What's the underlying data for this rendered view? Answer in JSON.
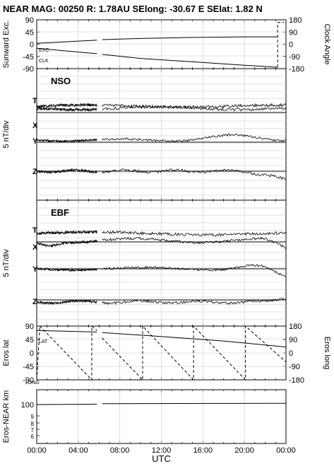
{
  "header": {
    "title": "NEAR MAG: 00250  R: 1.78AU  SElong:  -30.67 E  SElat:    1.82 N"
  },
  "chart_data": [
    {
      "id": "orientation",
      "type": "line",
      "ylabel_left": "Sunward Exc.",
      "ylabel_right": "Clock Angle",
      "yticks_left": [
        "90",
        "45",
        "0",
        "-45",
        "-90"
      ],
      "yticks_right": [
        "180",
        "90",
        "0",
        "-90",
        "-180"
      ],
      "ylim_left": [
        -90,
        90
      ],
      "ylim_right": [
        -180,
        180
      ],
      "annotations": [
        "EXC.",
        "CLK"
      ],
      "gap_hours": [
        5.8,
        6.3
      ],
      "series": [
        {
          "name": "EXC.",
          "axis": "left",
          "style": "solid",
          "x": [
            0,
            5.8,
            6.3,
            10,
            15,
            20,
            23.2
          ],
          "y": [
            3,
            15,
            17,
            21,
            25,
            27,
            27
          ]
        },
        {
          "name": "CLK",
          "axis": "right",
          "style": "solid",
          "x": [
            0,
            5.8,
            6.3,
            10,
            15,
            20,
            23.2
          ],
          "y": [
            -30,
            -70,
            -75,
            -105,
            -130,
            -155,
            -170
          ]
        },
        {
          "name": "CLK",
          "axis": "right",
          "style": "dashed",
          "x": [
            23.2,
            23.2,
            23.8
          ],
          "y": [
            -170,
            160,
            160
          ]
        }
      ]
    },
    {
      "id": "nso",
      "type": "line",
      "label": "NSO",
      "ylabel": "5 nT/div",
      "components": [
        "T",
        "X",
        "Y",
        "Z"
      ],
      "gap_hours": [
        5.8,
        6.3
      ]
    },
    {
      "id": "ebf",
      "type": "line",
      "label": "EBF",
      "ylabel": "5 nT/div",
      "components": [
        "T",
        "X",
        "Y",
        "Z"
      ],
      "gap_hours": [
        5.8,
        6.3
      ]
    },
    {
      "id": "eros-angles",
      "type": "line",
      "ylabel_left": "Eros lat",
      "ylabel_right": "Eros long",
      "yticks_left": [
        "90",
        "45",
        "0",
        "-45",
        "-90"
      ],
      "yticks_right": [
        "180",
        "90",
        "0",
        "-90",
        "-180"
      ],
      "ylim_left": [
        -90,
        90
      ],
      "ylim_right": [
        -180,
        180
      ],
      "annotations": [
        "LAT",
        "LONG"
      ],
      "gap_hours": [
        5.8,
        6.3
      ],
      "series": [
        {
          "name": "LAT",
          "axis": "left",
          "style": "solid",
          "x": [
            0,
            5.8,
            6.3,
            12,
            18,
            24
          ],
          "y": [
            75,
            70,
            68,
            55,
            40,
            20
          ]
        },
        {
          "name": "LONG",
          "axis": "right",
          "style": "dashed",
          "x": [
            0.3,
            5.3,
            5.3,
            5.8
          ],
          "y": [
            180,
            -180,
            180,
            150
          ]
        },
        {
          "name": "LONG",
          "axis": "right",
          "style": "dashed",
          "x": [
            6.3,
            10.2,
            10.2,
            15.1,
            15.1,
            20.1,
            20.1,
            24
          ],
          "y": [
            100,
            -180,
            180,
            -180,
            180,
            -180,
            180,
            -60
          ]
        },
        {
          "name": "LONG",
          "axis": "right",
          "style": "dashed",
          "x": [
            0,
            0.3
          ],
          "y": [
            -180,
            180
          ]
        }
      ]
    },
    {
      "id": "distance",
      "type": "line",
      "ylabel": "Eros-NEAR km",
      "yticks": [
        "100",
        "9",
        "8",
        "7",
        "6"
      ],
      "gap_hours": [
        5.8,
        6.3
      ],
      "series": [
        {
          "name": "",
          "x": [
            0,
            5.8,
            6.3,
            24
          ],
          "y": [
            100,
            101,
            102,
            103
          ]
        }
      ]
    }
  ],
  "xaxis": {
    "label": "UTC",
    "ticks": [
      "00:00",
      "04:00",
      "08:00",
      "12:00",
      "16:00",
      "20:00",
      "00:00"
    ],
    "range_hours": [
      0,
      24
    ]
  }
}
